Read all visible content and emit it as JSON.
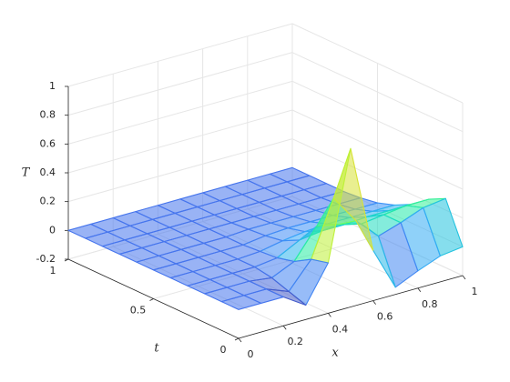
{
  "chart_data": {
    "type": "surface",
    "x_label": "x",
    "y_label": "t",
    "z_label": "T",
    "x": [
      0,
      0.1,
      0.2,
      0.3,
      0.4,
      0.5,
      0.6,
      0.7,
      0.8,
      0.9,
      1
    ],
    "y": [
      0,
      0.1,
      0.2,
      0.3,
      0.4,
      0.5,
      0.6,
      0.7,
      0.8,
      0.9,
      1
    ],
    "z": [
      [
        0,
        0,
        0,
        -0.1,
        0.15,
        0.9,
        0.15,
        -0.15,
        -0.08,
        -0.02,
        0
      ],
      [
        0,
        0,
        0,
        -0.06,
        0.12,
        0.5,
        0.3,
        0.15,
        0.2,
        0.26,
        0.28
      ],
      [
        0,
        0,
        0,
        -0.02,
        0.05,
        0.25,
        0.22,
        0.18,
        0.2,
        0.22,
        0.22
      ],
      [
        0,
        0,
        0,
        0,
        0.02,
        0.1,
        0.12,
        0.12,
        0.13,
        0.13,
        0.13
      ],
      [
        0,
        0,
        0,
        0,
        0.01,
        0.04,
        0.06,
        0.07,
        0.07,
        0.07,
        0.07
      ],
      [
        0,
        0,
        0,
        0,
        0,
        0.02,
        0.03,
        0.03,
        0.03,
        0.03,
        0.03
      ],
      [
        0,
        0,
        0,
        0,
        0,
        0.01,
        0.01,
        0.01,
        0.01,
        0.01,
        0.01
      ],
      [
        0,
        0,
        0,
        0,
        0,
        0,
        0,
        0,
        0,
        0,
        0
      ],
      [
        0,
        0,
        0,
        0,
        0,
        0,
        0,
        0,
        0,
        0,
        0
      ],
      [
        0,
        0,
        0,
        0,
        0,
        0,
        0,
        0,
        0,
        0,
        0
      ],
      [
        0,
        0,
        0,
        0,
        0,
        0,
        0,
        0,
        0,
        0,
        0
      ]
    ],
    "xlim": [
      0,
      1
    ],
    "ylim": [
      0,
      1
    ],
    "zlim": [
      -0.2,
      1
    ],
    "xticks": [
      0,
      0.2,
      0.4,
      0.6,
      0.8,
      1
    ],
    "yticks": [
      0,
      0.5,
      1
    ],
    "zticks": [
      -0.2,
      0,
      0.2,
      0.4,
      0.6,
      0.8,
      1
    ],
    "grid": true,
    "colormap": [
      "#30123b",
      "#4145ab",
      "#4675ed",
      "#39a2fc",
      "#1bcfd4",
      "#24eca6",
      "#61fc6c",
      "#a4fc3b",
      "#d1e834",
      "#f3c63a",
      "#fe9b2d",
      "#f36315",
      "#d93806",
      "#b11901",
      "#7a0403"
    ]
  }
}
